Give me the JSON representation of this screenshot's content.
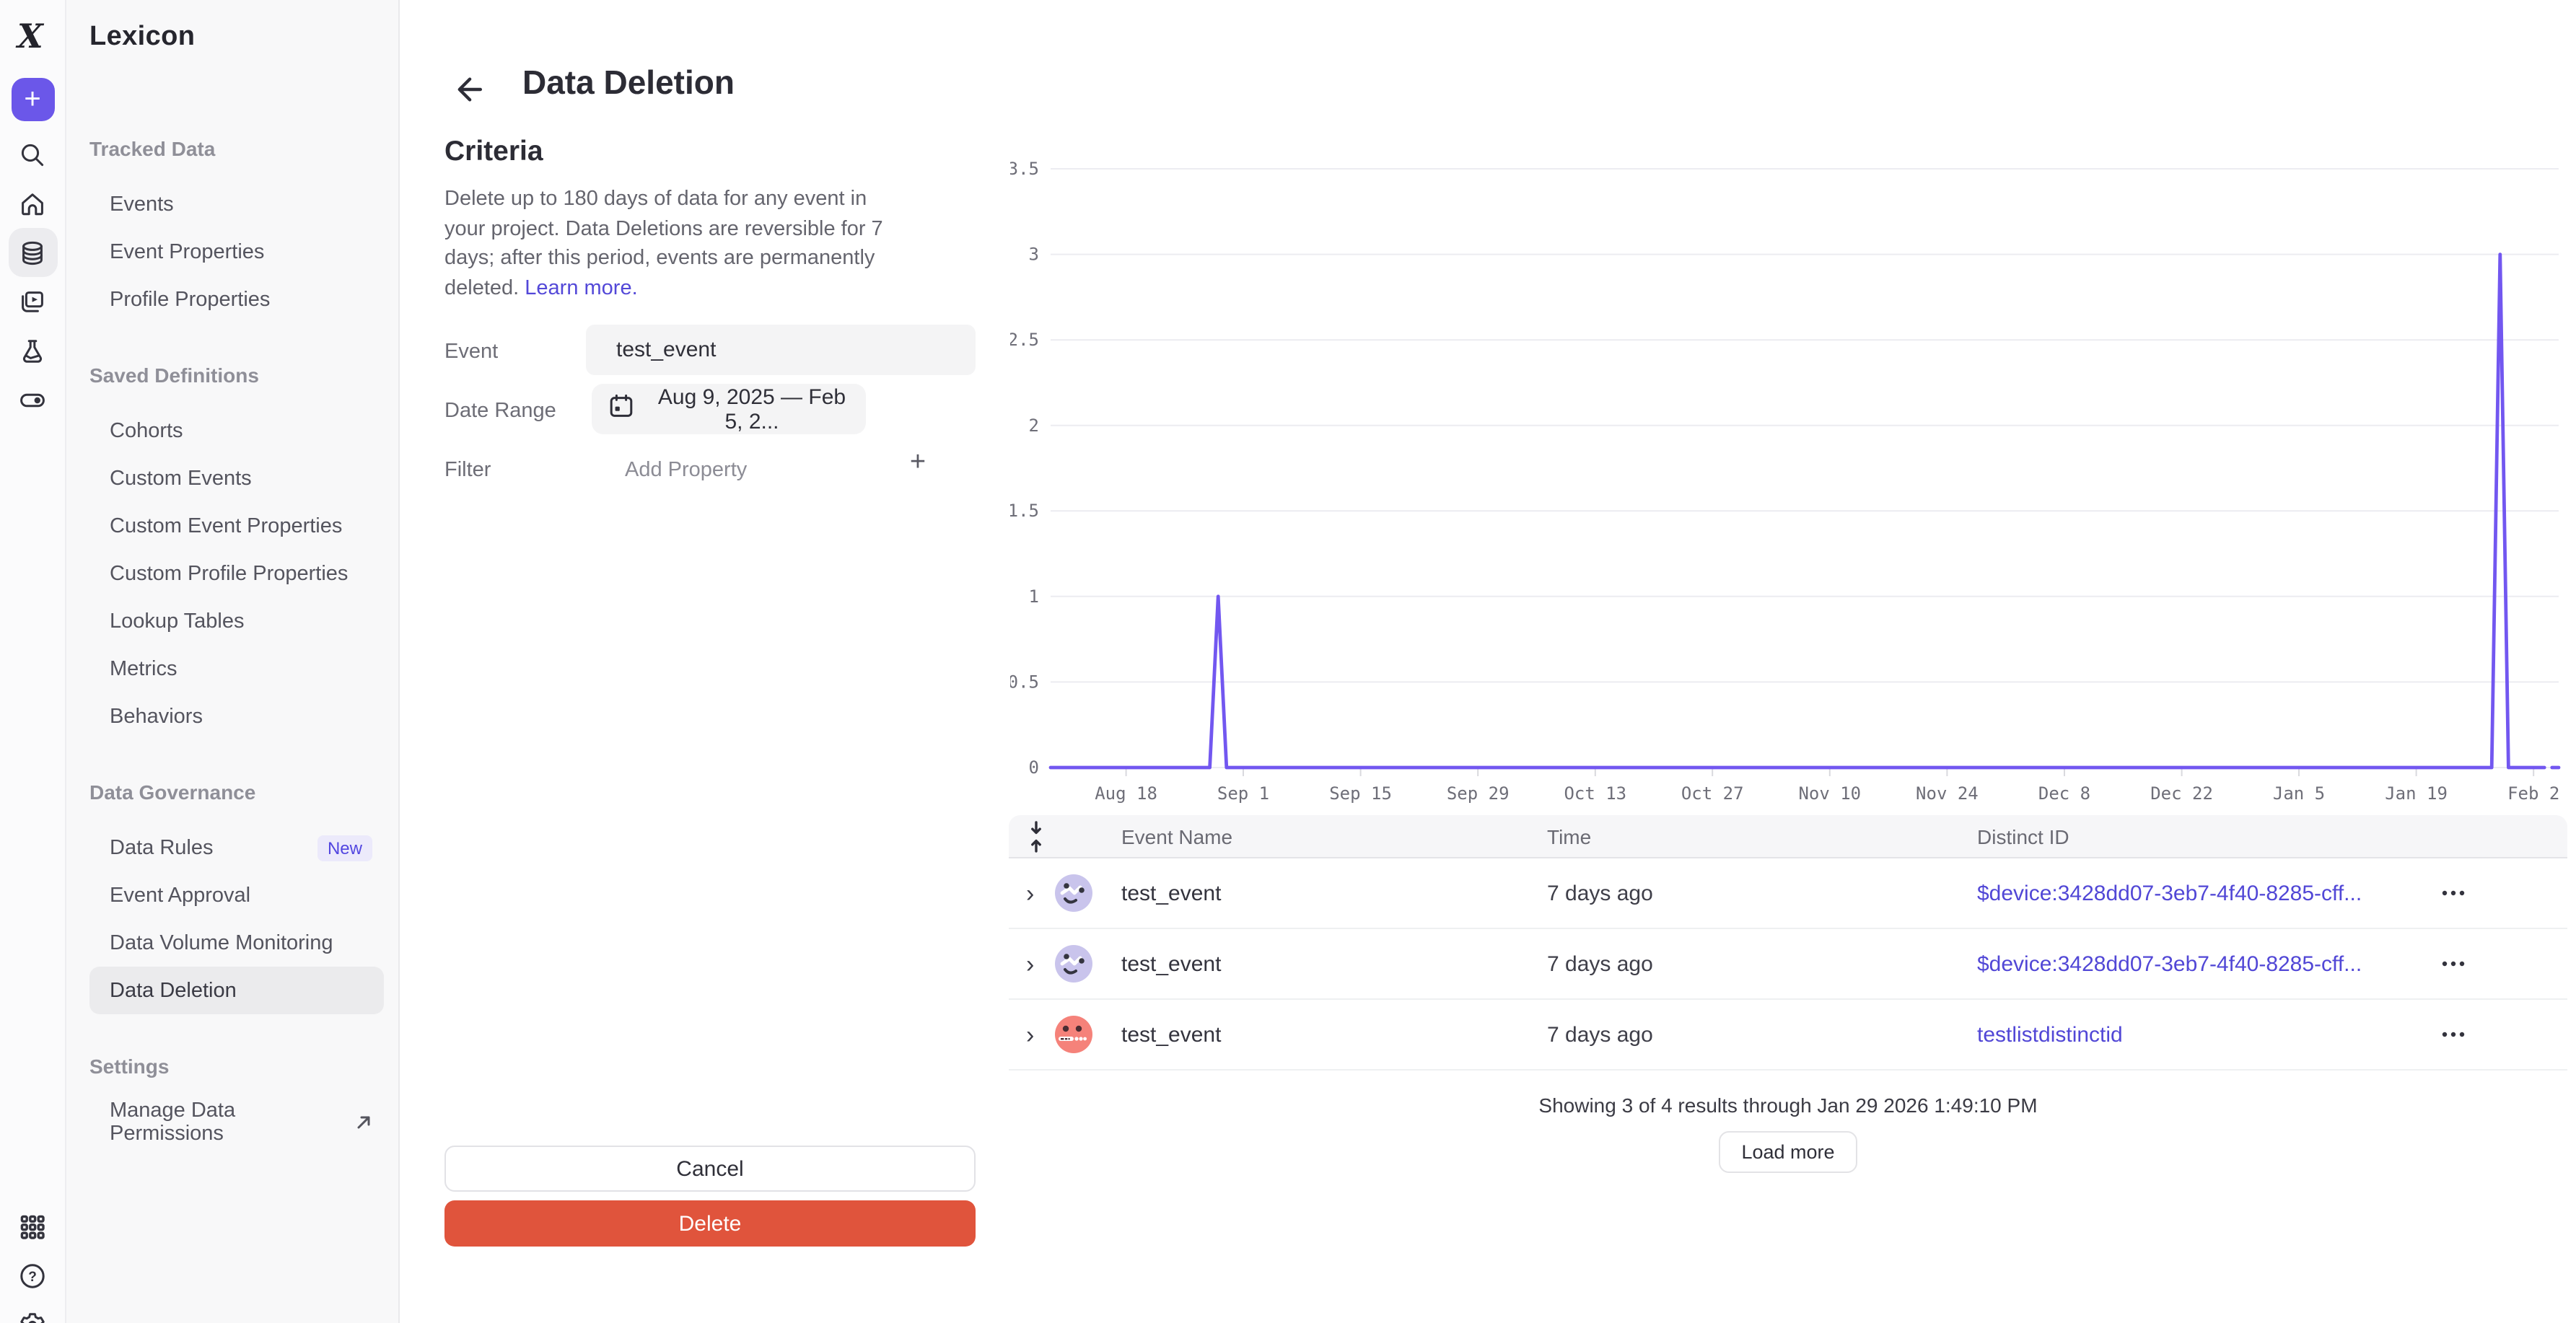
{
  "rail": {
    "icons": [
      {
        "name": "mixpanel-logo"
      },
      {
        "name": "create-plus"
      },
      {
        "name": "search"
      },
      {
        "name": "home"
      },
      {
        "name": "data-catalog",
        "selected": true
      },
      {
        "name": "boards"
      },
      {
        "name": "experiments"
      },
      {
        "name": "feature-flags"
      }
    ],
    "bottom_icons": [
      {
        "name": "apps-grid"
      },
      {
        "name": "help"
      },
      {
        "name": "settings-gear"
      }
    ]
  },
  "sidebar": {
    "title": "Lexicon",
    "sections": [
      {
        "label": "Tracked Data",
        "items": [
          {
            "label": "Events"
          },
          {
            "label": "Event Properties"
          },
          {
            "label": "Profile Properties"
          }
        ]
      },
      {
        "label": "Saved Definitions",
        "items": [
          {
            "label": "Cohorts"
          },
          {
            "label": "Custom Events"
          },
          {
            "label": "Custom Event Properties"
          },
          {
            "label": "Custom Profile Properties"
          },
          {
            "label": "Lookup Tables"
          },
          {
            "label": "Metrics"
          },
          {
            "label": "Behaviors"
          }
        ]
      },
      {
        "label": "Data Governance",
        "items": [
          {
            "label": "Data Rules",
            "badge": "New"
          },
          {
            "label": "Event Approval"
          },
          {
            "label": "Data Volume Monitoring"
          },
          {
            "label": "Data Deletion",
            "selected": true
          }
        ]
      },
      {
        "label": "Settings",
        "items": [
          {
            "label": "Manage Data Permissions",
            "external": true
          }
        ]
      }
    ]
  },
  "header": {
    "title": "Data Deletion"
  },
  "criteria": {
    "heading": "Criteria",
    "description": "Delete up to 180 days of data for any event in your project. Data Deletions are reversible for 7 days; after this period, events are permanently deleted.",
    "learn_more_label": "Learn more.",
    "fields": {
      "event_label": "Event",
      "event_value": "test_event",
      "date_range_label": "Date Range",
      "date_range_value": "Aug 9, 2025 — Feb 5, 2...",
      "filter_label": "Filter",
      "add_property_label": "Add Property"
    },
    "cancel_label": "Cancel",
    "delete_label": "Delete"
  },
  "chart_data": {
    "type": "line",
    "x_span_days": 180,
    "ylim": [
      0,
      3.5
    ],
    "y_ticks": [
      0,
      0.5,
      1,
      1.5,
      2,
      2.5,
      3,
      3.5
    ],
    "grid": true,
    "legend": false,
    "x_ticks": [
      {
        "label": "Aug 18",
        "day": 9
      },
      {
        "label": "Sep 1",
        "day": 23
      },
      {
        "label": "Sep 15",
        "day": 37
      },
      {
        "label": "Sep 29",
        "day": 51
      },
      {
        "label": "Oct 13",
        "day": 65
      },
      {
        "label": "Oct 27",
        "day": 79
      },
      {
        "label": "Nov 10",
        "day": 93
      },
      {
        "label": "Nov 24",
        "day": 107
      },
      {
        "label": "Dec 8",
        "day": 121
      },
      {
        "label": "Dec 22",
        "day": 135
      },
      {
        "label": "Jan 5",
        "day": 149
      },
      {
        "label": "Jan 19",
        "day": 163
      },
      {
        "label": "Feb 2",
        "day": 177
      }
    ],
    "series": [
      {
        "name": "test_event",
        "color": "#7257f0",
        "segments": [
          [
            [
              0,
              0
            ],
            [
              19,
              0
            ],
            [
              20,
              1
            ],
            [
              21,
              0
            ],
            [
              172,
              0
            ],
            [
              173,
              3
            ],
            [
              174,
              0
            ],
            [
              178.3,
              0
            ]
          ],
          [
            [
              179.2,
              0
            ],
            [
              180,
              0
            ]
          ]
        ]
      }
    ]
  },
  "table": {
    "columns": [
      "Event Name",
      "Time",
      "Distinct ID"
    ],
    "rows": [
      {
        "event": "test_event",
        "time": "7 days ago",
        "distinct_id": "$device:3428dd07-3eb7-4f40-8285-cff...",
        "avatar": "lavender-smiley"
      },
      {
        "event": "test_event",
        "time": "7 days ago",
        "distinct_id": "$device:3428dd07-3eb7-4f40-8285-cff...",
        "avatar": "lavender-smiley"
      },
      {
        "event": "test_event",
        "time": "7 days ago",
        "distinct_id": "testlistdistinctid",
        "avatar": "coral-face"
      }
    ],
    "footer": "Showing 3 of 4 results through Jan 29 2026 1:49:10 PM",
    "load_more_label": "Load more"
  },
  "colors": {
    "accent_purple": "#6b57e9",
    "line_purple": "#7257f0",
    "delete_red": "#e0543c",
    "link_blue": "#5147d6",
    "badge_purple": "#5246e0"
  }
}
